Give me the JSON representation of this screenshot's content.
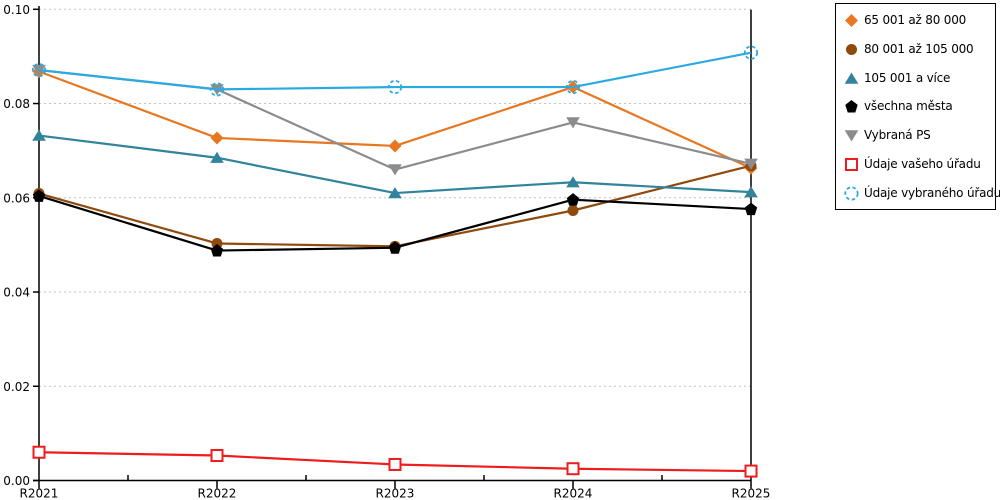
{
  "chart_data": {
    "type": "line",
    "title": "",
    "xlabel": "",
    "ylabel": "",
    "x_categories": [
      "R2021",
      "R2022",
      "R2023",
      "R2024",
      "R2025"
    ],
    "ylim": [
      0.0,
      0.1
    ],
    "ytick_step": 0.02,
    "ytick_labels": [
      "0.00",
      "0.02",
      "0.04",
      "0.06",
      "0.08",
      "0.10"
    ],
    "grid": "horizontal dotted gridlines at each 0.02",
    "legend_position": "outside top-right, boxed",
    "series": [
      {
        "name": "65 001 až 80 000",
        "color": "#E87722",
        "marker": "diamond",
        "marker_style": "filled",
        "values": [
          0.0868,
          0.0727,
          0.071,
          0.0835,
          0.0663
        ]
      },
      {
        "name": "80 001 až 105 000",
        "color": "#8F4A0E",
        "marker": "circle",
        "marker_style": "filled",
        "values": [
          0.0609,
          0.0503,
          0.0497,
          0.0573,
          0.0668
        ]
      },
      {
        "name": "105 001 a více",
        "color": "#31849B",
        "marker": "triangle-up",
        "marker_style": "filled",
        "values": [
          0.0732,
          0.0685,
          0.061,
          0.0633,
          0.0612
        ]
      },
      {
        "name": "všechna města",
        "color": "#000000",
        "marker": "pentagon",
        "marker_style": "filled",
        "values": [
          0.0604,
          0.0488,
          0.0494,
          0.0596,
          0.0576
        ]
      },
      {
        "name": "Vybraná PS",
        "color": "#8C8C8C",
        "marker": "triangle-down",
        "marker_style": "filled",
        "values": [
          0.0871,
          0.083,
          0.066,
          0.076,
          0.0672
        ]
      },
      {
        "name": "Údaje vašeho úřadu",
        "color": "#EE1C1C",
        "marker": "square",
        "marker_style": "open",
        "values": [
          0.006,
          0.0053,
          0.0034,
          0.0025,
          0.002
        ]
      },
      {
        "name": "Údaje vybraného úřadu",
        "color": "#2BAAE2",
        "marker": "circle-dashed",
        "marker_style": "open",
        "values": [
          0.0871,
          0.083,
          0.0835,
          0.0835,
          0.0908
        ]
      }
    ]
  },
  "colors": {
    "background": "#ffffff",
    "axis": "#000000",
    "gridline": "#c3c3c3",
    "legend_border": "#000000",
    "text": "#000000"
  }
}
